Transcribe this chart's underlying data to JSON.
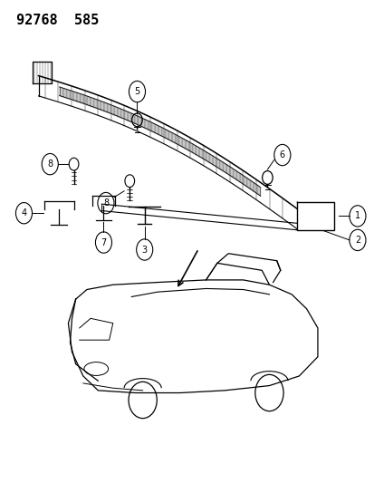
{
  "title": "92768  585",
  "bg_color": "#ffffff",
  "line_color": "#000000",
  "title_fontsize": 11,
  "fig_width": 4.14,
  "fig_height": 5.33,
  "dpi": 100
}
